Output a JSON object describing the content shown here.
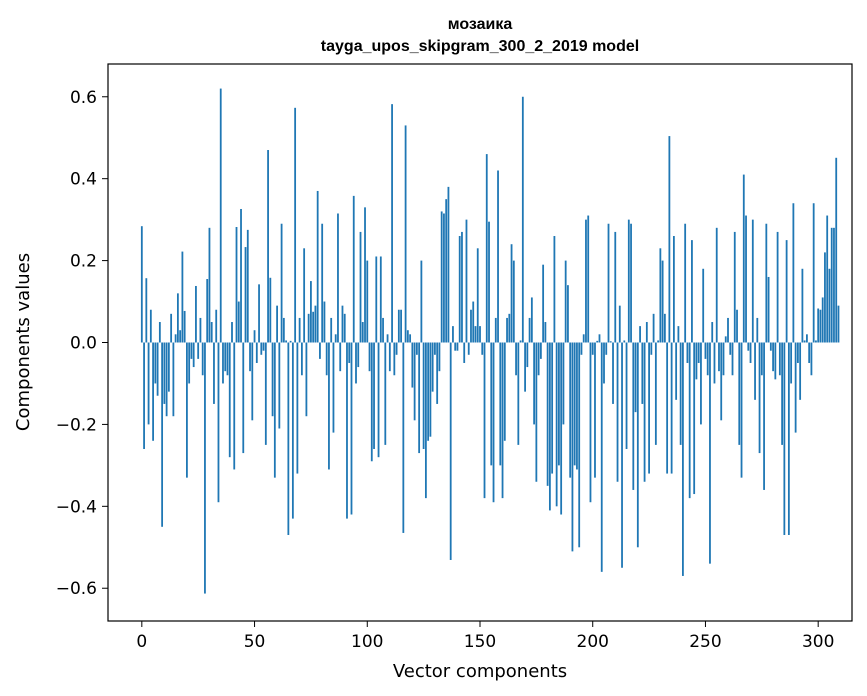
{
  "chart_data": {
    "type": "bar",
    "title_line1": "мозаика",
    "title_line2": "tayga_upos_skipgram_300_2_2019 model",
    "xlabel": "Vector components",
    "ylabel": "Components values",
    "xlim": [
      -15,
      315
    ],
    "ylim": [
      -0.68,
      0.68
    ],
    "xticks": [
      0,
      50,
      100,
      150,
      200,
      250,
      300
    ],
    "yticks": [
      -0.6,
      -0.4,
      -0.2,
      0.0,
      0.2,
      0.4,
      0.6
    ],
    "ytick_labels": [
      "−0.6",
      "−0.4",
      "−0.2",
      "0.0",
      "0.2",
      "0.4",
      "0.6"
    ],
    "bar_color": "#1f77b4",
    "values": [
      0.284,
      -0.26,
      0.157,
      -0.2,
      0.08,
      -0.24,
      -0.1,
      -0.13,
      0.05,
      -0.45,
      -0.15,
      -0.18,
      -0.12,
      0.07,
      -0.18,
      0.02,
      0.12,
      0.03,
      0.222,
      0.077,
      -0.33,
      -0.1,
      -0.04,
      -0.06,
      0.138,
      -0.04,
      0.06,
      -0.08,
      -0.613,
      0.155,
      0.28,
      0.05,
      -0.15,
      0.08,
      -0.39,
      0.62,
      -0.1,
      -0.07,
      -0.08,
      -0.28,
      0.05,
      -0.31,
      0.282,
      0.1,
      0.326,
      -0.27,
      0.233,
      0.275,
      -0.07,
      -0.19,
      0.03,
      -0.05,
      0.142,
      -0.03,
      -0.02,
      -0.25,
      0.47,
      0.158,
      -0.18,
      -0.33,
      0.09,
      -0.21,
      0.29,
      0.06,
      0.005,
      -0.47,
      0.004,
      -0.43,
      0.573,
      -0.32,
      0.06,
      -0.08,
      0.23,
      -0.18,
      0.07,
      0.15,
      0.075,
      0.09,
      0.37,
      -0.04,
      0.29,
      0.1,
      -0.08,
      -0.31,
      0.06,
      -0.22,
      0.02,
      0.315,
      -0.07,
      0.09,
      0.07,
      -0.43,
      -0.05,
      -0.42,
      0.358,
      -0.1,
      -0.06,
      0.27,
      0.05,
      0.33,
      0.2,
      -0.07,
      -0.29,
      -0.26,
      0.21,
      -0.28,
      0.21,
      0.06,
      -0.25,
      0.02,
      -0.07,
      0.582,
      -0.08,
      -0.03,
      0.08,
      0.08,
      -0.465,
      0.53,
      0.03,
      0.02,
      -0.11,
      -0.19,
      -0.03,
      -0.27,
      0.2,
      -0.26,
      -0.38,
      -0.24,
      -0.23,
      -0.12,
      -0.03,
      -0.15,
      -0.07,
      0.32,
      0.315,
      0.35,
      0.38,
      -0.531,
      0.04,
      -0.02,
      -0.02,
      0.26,
      0.27,
      -0.05,
      0.3,
      -0.03,
      0.08,
      0.1,
      0.04,
      0.23,
      0.04,
      -0.03,
      -0.38,
      0.46,
      0.295,
      -0.3,
      -0.39,
      0.06,
      0.42,
      -0.3,
      -0.38,
      -0.24,
      0.06,
      0.07,
      0.24,
      0.2,
      -0.08,
      -0.25,
      0.005,
      0.6,
      -0.12,
      -0.06,
      0.06,
      0.11,
      -0.2,
      -0.34,
      -0.08,
      -0.04,
      0.19,
      0.05,
      -0.35,
      -0.41,
      -0.32,
      0.26,
      -0.4,
      -0.3,
      -0.42,
      -0.2,
      0.2,
      0.14,
      -0.33,
      -0.51,
      -0.3,
      -0.31,
      -0.5,
      -0.03,
      0.02,
      0.3,
      0.31,
      -0.39,
      -0.03,
      -0.33,
      0.004,
      0.02,
      -0.56,
      -0.1,
      -0.03,
      0.29,
      0.003,
      -0.15,
      0.27,
      -0.34,
      0.09,
      -0.55,
      0.005,
      -0.26,
      0.3,
      0.29,
      -0.36,
      -0.17,
      -0.5,
      0.04,
      -0.15,
      -0.34,
      0.05,
      -0.32,
      -0.03,
      0.07,
      -0.25,
      0.005,
      0.23,
      0.2,
      0.07,
      -0.32,
      0.504,
      -0.32,
      0.26,
      -0.14,
      0.04,
      -0.25,
      -0.57,
      0.29,
      -0.05,
      -0.38,
      0.25,
      -0.37,
      -0.09,
      -0.05,
      -0.2,
      0.18,
      -0.04,
      -0.08,
      -0.54,
      0.05,
      -0.1,
      0.28,
      -0.07,
      -0.19,
      -0.08,
      0.015,
      0.06,
      -0.03,
      -0.08,
      0.27,
      0.08,
      -0.25,
      -0.33,
      0.41,
      0.31,
      -0.02,
      -0.05,
      0.3,
      -0.14,
      0.06,
      -0.27,
      -0.08,
      -0.36,
      0.29,
      0.16,
      -0.02,
      -0.07,
      -0.09,
      0.27,
      -0.08,
      -0.25,
      -0.47,
      0.25,
      -0.47,
      -0.1,
      0.34,
      -0.22,
      -0.05,
      -0.14,
      0.18,
      0.005,
      0.02,
      -0.05,
      -0.08,
      0.34,
      0.005,
      0.083,
      0.08,
      0.11,
      0.22,
      0.31,
      0.18,
      0.28,
      0.28,
      0.451,
      0.09
    ]
  }
}
